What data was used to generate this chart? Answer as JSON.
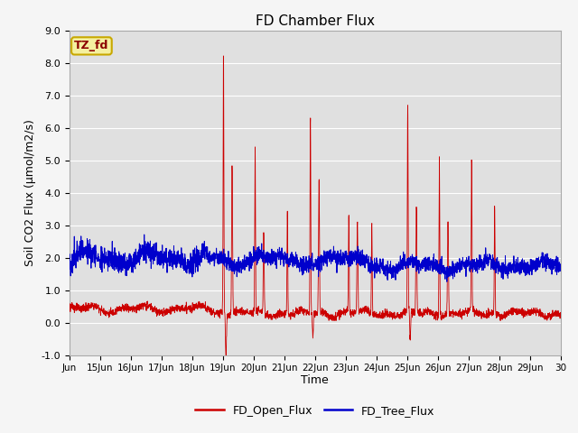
{
  "title": "FD Chamber Flux",
  "xlabel": "Time",
  "ylabel": "Soil CO2 Flux (μmol/m2/s)",
  "ylim": [
    -1.0,
    9.0
  ],
  "xlim_start": 14,
  "xlim_end": 30,
  "xtick_labels": [
    "Jun",
    "15Jun",
    "16Jun",
    "17Jun",
    "18Jun",
    "19Jun",
    "20Jun",
    "21Jun",
    "22Jun",
    "23Jun",
    "24Jun",
    "25Jun",
    "26Jun",
    "27Jun",
    "28Jun",
    "29Jun",
    "30"
  ],
  "xtick_positions": [
    14,
    15,
    16,
    17,
    18,
    19,
    20,
    21,
    22,
    23,
    24,
    25,
    26,
    27,
    28,
    29,
    30
  ],
  "open_flux_color": "#cc0000",
  "tree_flux_color": "#0000cc",
  "background_color": "#e0e0e0",
  "fig_background": "#f5f5f5",
  "grid_color": "#ffffff",
  "annotation_text": "TZ_fd",
  "annotation_bg": "#f5f0a0",
  "annotation_border": "#c8a800",
  "legend_labels": [
    "FD_Open_Flux",
    "FD_Tree_Flux"
  ],
  "title_fontsize": 11,
  "axis_label_fontsize": 9,
  "tick_fontsize": 8,
  "legend_fontsize": 9,
  "spike_events": [
    {
      "day": 19.02,
      "height": 8.05,
      "neg_after": true,
      "neg_depth": -0.85,
      "secondary": 4.6
    },
    {
      "day": 20.05,
      "height": 5.05,
      "neg_after": false,
      "neg_depth": 0,
      "secondary": 2.6
    },
    {
      "day": 21.1,
      "height": 3.2,
      "neg_after": false,
      "neg_depth": 0,
      "secondary": 0
    },
    {
      "day": 21.85,
      "height": 6.0,
      "neg_after": true,
      "neg_depth": -0.5,
      "secondary": 4.1
    },
    {
      "day": 23.1,
      "height": 3.05,
      "neg_after": false,
      "neg_depth": 0,
      "secondary": 2.85
    },
    {
      "day": 23.85,
      "height": 2.85,
      "neg_after": false,
      "neg_depth": 0,
      "secondary": 0
    },
    {
      "day": 25.02,
      "height": 6.4,
      "neg_after": true,
      "neg_depth": -0.6,
      "secondary": 3.3
    },
    {
      "day": 26.05,
      "height": 4.85,
      "neg_after": false,
      "neg_depth": 0,
      "secondary": 2.9
    },
    {
      "day": 27.1,
      "height": 4.7,
      "neg_after": false,
      "neg_depth": 0,
      "secondary": 0
    },
    {
      "day": 27.85,
      "height": 3.3,
      "neg_after": false,
      "neg_depth": 0,
      "secondary": 0
    }
  ]
}
